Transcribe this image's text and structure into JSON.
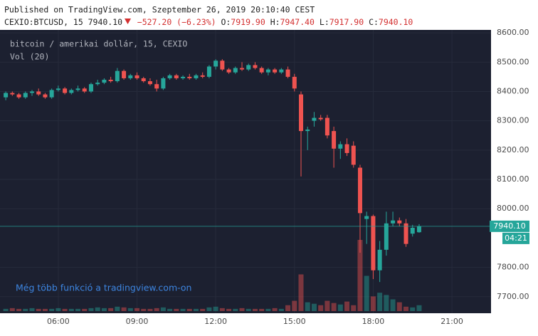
{
  "header": {
    "published": "Published on TradingView.com, Szeptember 26, 2019 20:10:40 CEST",
    "symbol": "CEXIO:BTCUSD, 15",
    "last": "7940.10",
    "change": "−527.20 (−6.23%)",
    "o_label": "O:",
    "o": "7919.90",
    "h_label": "H:",
    "h": "7947.40",
    "l_label": "L:",
    "l": "7917.90",
    "c_label": "C:",
    "c": "7940.10"
  },
  "chart_data": {
    "type": "candlestick",
    "legend_title": "bitcoin / amerikai dollár, 15, CEXIO",
    "volume_label": "Vol (20)",
    "watermark": "Még több funkció a tradingview.com-on",
    "up_color": "#26a69a",
    "down_color": "#ef5350",
    "grid": true,
    "x": [
      4,
      4.25,
      4.5,
      4.75,
      5,
      5.25,
      5.5,
      5.75,
      6,
      6.25,
      6.5,
      6.75,
      7,
      7.25,
      7.5,
      7.75,
      8,
      8.25,
      8.5,
      8.75,
      9,
      9.25,
      9.5,
      9.75,
      10,
      10.25,
      10.5,
      10.75,
      11,
      11.25,
      11.5,
      11.75,
      12,
      12.25,
      12.5,
      12.75,
      13,
      13.25,
      13.5,
      13.75,
      14,
      14.25,
      14.5,
      14.75,
      15,
      15.25,
      15.5,
      15.75,
      16,
      16.25,
      16.5,
      16.75,
      17,
      17.25,
      17.5,
      17.75,
      18,
      18.25,
      18.5,
      18.75,
      19,
      19.25,
      19.5,
      19.75
    ],
    "open": [
      8380,
      8395,
      8390,
      8380,
      8395,
      8400,
      8390,
      8380,
      8405,
      8410,
      8395,
      8405,
      8410,
      8400,
      8425,
      8430,
      8440,
      8435,
      8470,
      8445,
      8455,
      8445,
      8435,
      8425,
      8410,
      8445,
      8455,
      8445,
      8450,
      8445,
      8455,
      8450,
      8485,
      8505,
      8475,
      8465,
      8480,
      8475,
      8490,
      8480,
      8465,
      8475,
      8465,
      8475,
      8450,
      8390,
      8265,
      8300,
      8310,
      8310,
      8265,
      8205,
      8220,
      8215,
      8140,
      7965,
      7975,
      7790,
      7860,
      7950,
      7960,
      7950,
      7915,
      7919.9
    ],
    "high": [
      8400,
      8400,
      8395,
      8400,
      8405,
      8410,
      8395,
      8410,
      8420,
      8415,
      8410,
      8420,
      8415,
      8430,
      8440,
      8445,
      8450,
      8480,
      8475,
      8460,
      8465,
      8450,
      8445,
      8440,
      8450,
      8460,
      8460,
      8455,
      8460,
      8460,
      8465,
      8490,
      8510,
      8510,
      8480,
      8485,
      8500,
      8495,
      8500,
      8485,
      8480,
      8480,
      8480,
      8485,
      8460,
      8400,
      8280,
      8330,
      8320,
      8320,
      8280,
      8230,
      8240,
      8230,
      8150,
      7990,
      7980,
      7890,
      7990,
      7990,
      7970,
      7965,
      7945,
      7947.4
    ],
    "low": [
      8370,
      8385,
      8375,
      8375,
      8385,
      8385,
      8375,
      8375,
      8400,
      8390,
      8390,
      8400,
      8395,
      8395,
      8420,
      8425,
      8430,
      8430,
      8440,
      8440,
      8440,
      8430,
      8420,
      8400,
      8405,
      8440,
      8440,
      8440,
      8440,
      8440,
      8445,
      8445,
      8475,
      8470,
      8460,
      8460,
      8470,
      8470,
      8475,
      8460,
      8455,
      8460,
      8460,
      8445,
      8400,
      8110,
      8200,
      8280,
      8300,
      8240,
      8140,
      8170,
      8180,
      8140,
      7850,
      7880,
      7760,
      7750,
      7840,
      7940,
      7940,
      7870,
      7905,
      7917.9
    ],
    "close": [
      8395,
      8390,
      8380,
      8395,
      8400,
      8390,
      8380,
      8405,
      8410,
      8395,
      8405,
      8410,
      8400,
      8425,
      8430,
      8440,
      8435,
      8470,
      8445,
      8455,
      8445,
      8435,
      8425,
      8410,
      8445,
      8455,
      8445,
      8450,
      8445,
      8455,
      8450,
      8485,
      8505,
      8475,
      8465,
      8480,
      8475,
      8490,
      8480,
      8465,
      8475,
      8465,
      8475,
      8450,
      8410,
      8265,
      8270,
      8310,
      8305,
      8250,
      8205,
      8220,
      8190,
      8150,
      7985,
      7975,
      7790,
      7860,
      7950,
      7960,
      7950,
      7880,
      7935,
      7940.1
    ],
    "volume": [
      3,
      4,
      3,
      3,
      4,
      3,
      3,
      3,
      4,
      3,
      3,
      3,
      3,
      4,
      5,
      4,
      4,
      6,
      5,
      4,
      4,
      3,
      3,
      4,
      5,
      3,
      3,
      3,
      3,
      3,
      3,
      5,
      6,
      4,
      3,
      3,
      4,
      3,
      3,
      3,
      3,
      4,
      3,
      8,
      14,
      50,
      12,
      10,
      8,
      14,
      11,
      9,
      13,
      8,
      97,
      48,
      20,
      25,
      22,
      16,
      12,
      6,
      5,
      8
    ],
    "xlim": [
      3.78,
      22.49
    ],
    "ylim": [
      7595,
      8610
    ],
    "xticks": [
      {
        "value": 6,
        "label": "06:00"
      },
      {
        "value": 9,
        "label": "09:00"
      },
      {
        "value": 12,
        "label": "12:00"
      },
      {
        "value": 15,
        "label": "15:00"
      },
      {
        "value": 18,
        "label": "18:00"
      },
      {
        "value": 21,
        "label": "21:00"
      }
    ],
    "yticks": [
      {
        "value": 7700,
        "label": "7700.00"
      },
      {
        "value": 7800,
        "label": "7800.00"
      },
      {
        "value": 8000,
        "label": "8000.00"
      },
      {
        "value": 8100,
        "label": "8100.00"
      },
      {
        "value": 8200,
        "label": "8200.00"
      },
      {
        "value": 8300,
        "label": "8300.00"
      },
      {
        "value": 8400,
        "label": "8400.00"
      },
      {
        "value": 8500,
        "label": "8500.00"
      },
      {
        "value": 8600,
        "label": "8600.00"
      }
    ],
    "last_price": {
      "value": 7940.1,
      "label": "7940.10"
    },
    "countdown": "04:21"
  }
}
